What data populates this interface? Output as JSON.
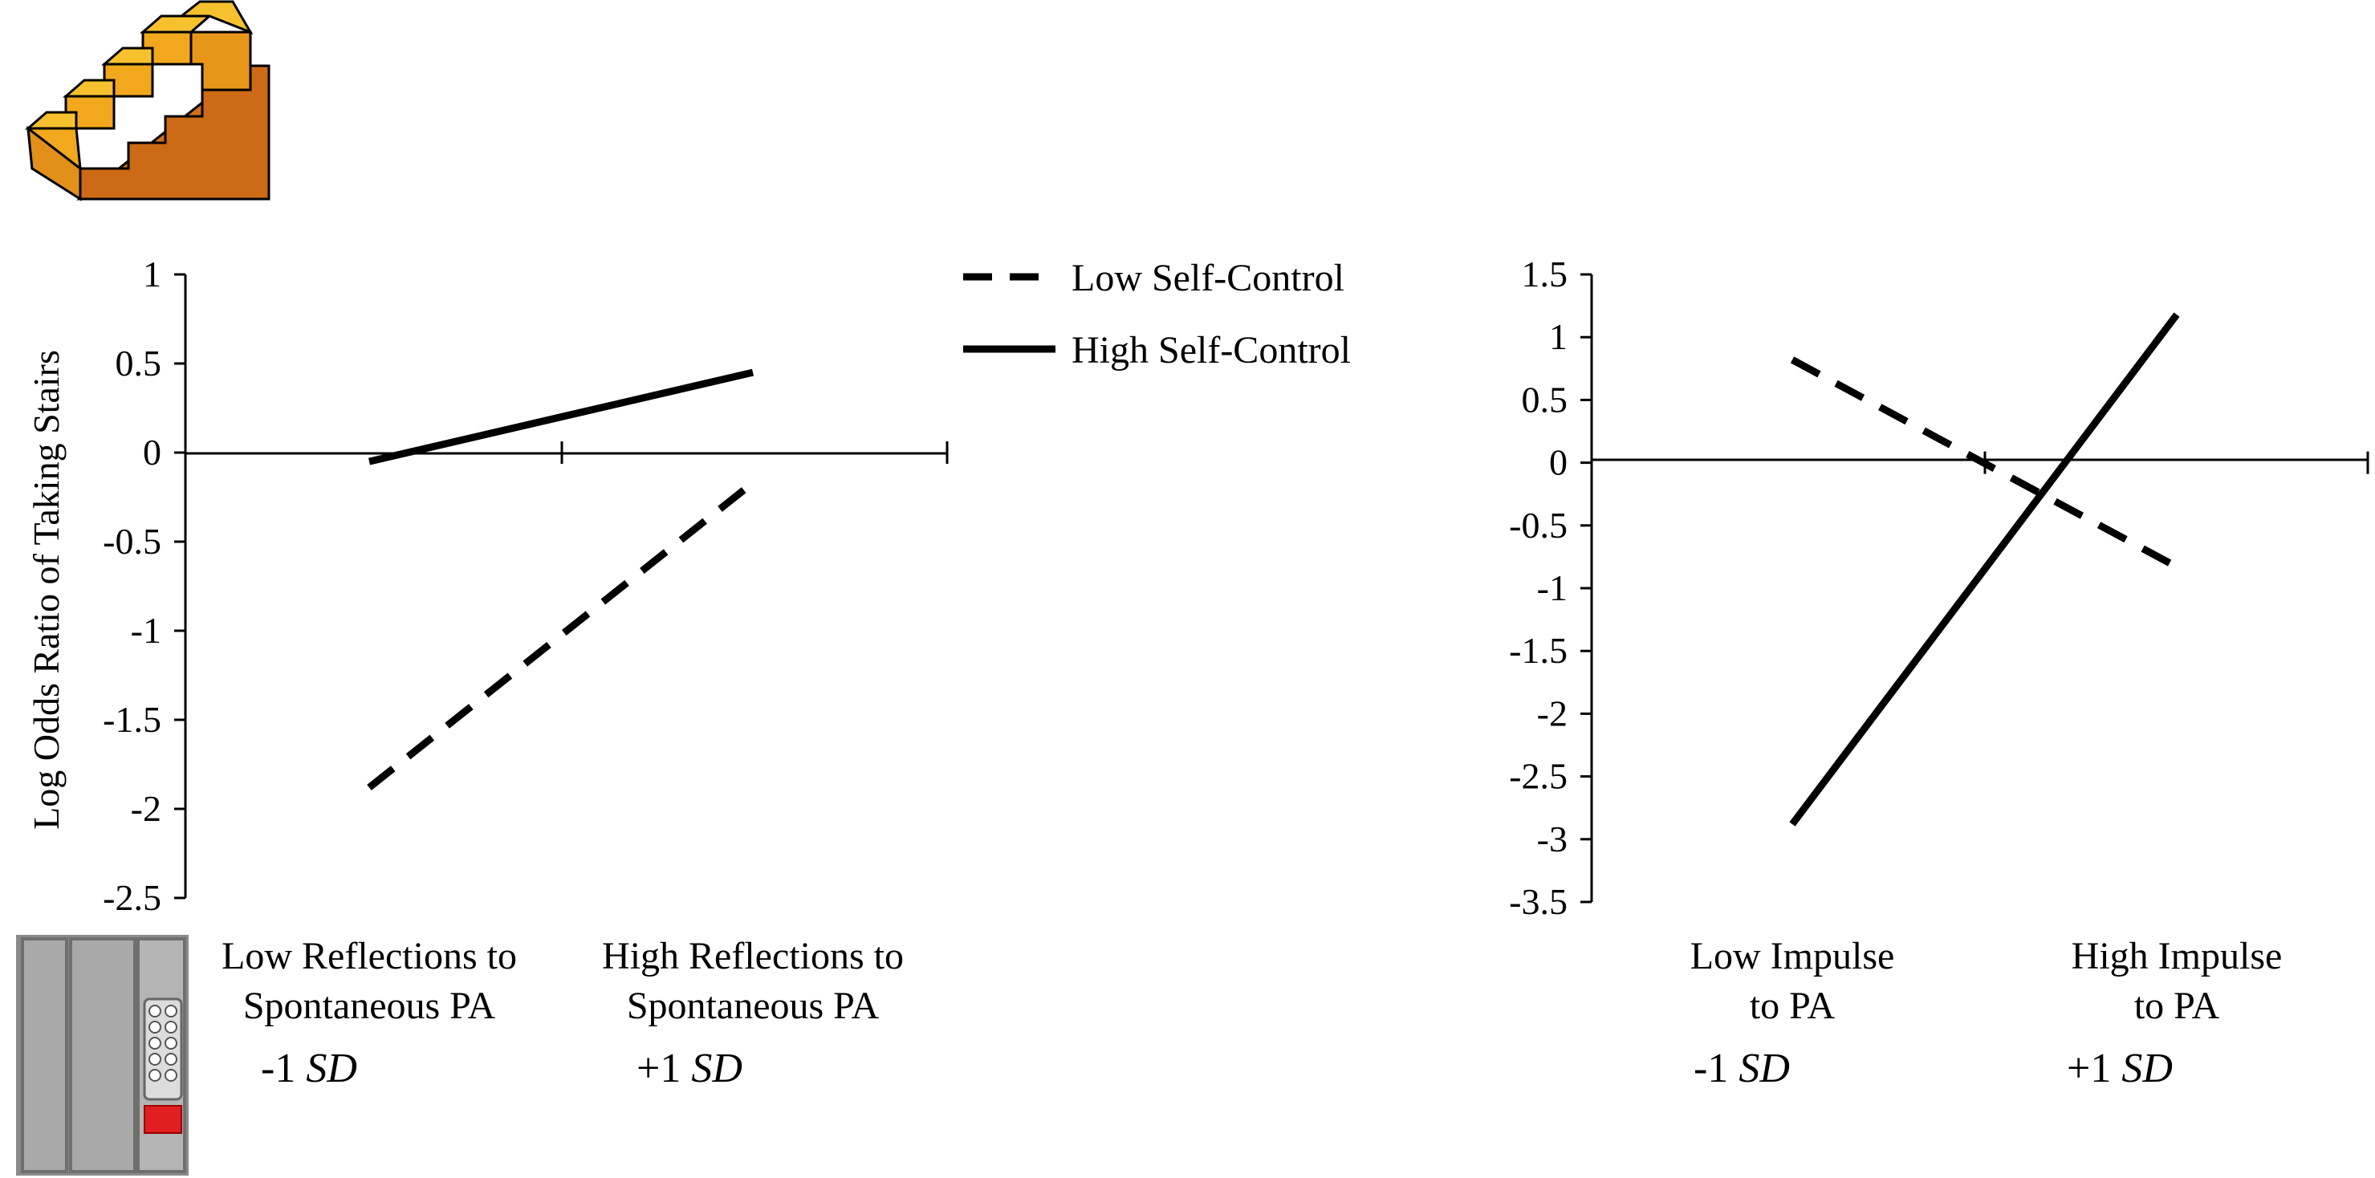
{
  "legend": {
    "low": "Low Self-Control",
    "high": "High Self-Control"
  },
  "chart_data": [
    {
      "type": "line",
      "title": "",
      "ylabel": "Log  Odds Ratio  of Taking  Stairs",
      "ylim": [
        -2.5,
        1
      ],
      "yticks": [
        "1",
        "0.5",
        "0",
        "-0.5",
        "-1",
        "-1.5",
        "-2",
        "-2.5"
      ],
      "ytick_values": [
        1,
        0.5,
        0,
        -0.5,
        -1,
        -1.5,
        -2,
        -2.5
      ],
      "categories": [
        [
          "Low Reflections to",
          "Spontaneous PA"
        ],
        [
          "High Reflections to",
          "Spontaneous PA"
        ]
      ],
      "sd_labels": [
        {
          "sign": "-1 ",
          "unit": "SD"
        },
        {
          "sign": "+1 ",
          "unit": "SD"
        }
      ],
      "series": [
        {
          "name": "Low Self-Control",
          "style": "dashed",
          "values": [
            -1.88,
            -0.17
          ]
        },
        {
          "name": "High Self-Control",
          "style": "solid",
          "values": [
            -0.05,
            0.45
          ]
        }
      ]
    },
    {
      "type": "line",
      "title": "",
      "ylabel": "",
      "ylim": [
        -3.5,
        1.5
      ],
      "yticks": [
        "1.5",
        "1",
        "0.5",
        "0",
        "-0.5",
        "-1",
        "-1.5",
        "-2",
        "-2.5",
        "-3",
        "-3.5"
      ],
      "ytick_values": [
        1.5,
        1,
        0.5,
        0,
        -0.5,
        -1,
        -1.5,
        -2,
        -2.5,
        -3,
        -3.5
      ],
      "categories": [
        [
          "Low Impulse",
          "to PA"
        ],
        [
          "High Impulse",
          "to PA"
        ]
      ],
      "sd_labels": [
        {
          "sign": "-1 ",
          "unit": "SD"
        },
        {
          "sign": "+1 ",
          "unit": "SD"
        }
      ],
      "series": [
        {
          "name": "Low Self-Control",
          "style": "dashed",
          "values": [
            0.82,
            -0.83
          ]
        },
        {
          "name": "High Self-Control",
          "style": "solid",
          "values": [
            -2.88,
            1.18
          ]
        }
      ]
    }
  ],
  "icons": {
    "stairs": "stairs-icon",
    "elevator": "elevator-icon"
  }
}
